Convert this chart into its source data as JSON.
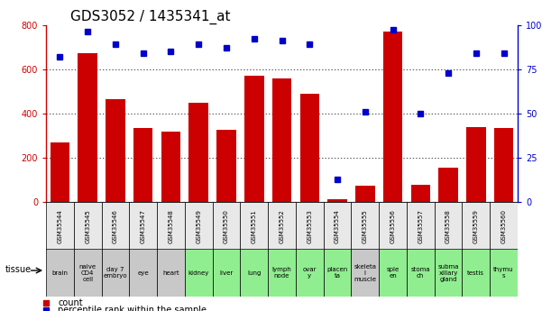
{
  "title": "GDS3052 / 1435341_at",
  "samples": [
    "GSM35544",
    "GSM35545",
    "GSM35546",
    "GSM35547",
    "GSM35548",
    "GSM35549",
    "GSM35550",
    "GSM35551",
    "GSM35552",
    "GSM35553",
    "GSM35554",
    "GSM35555",
    "GSM35556",
    "GSM35557",
    "GSM35558",
    "GSM35559",
    "GSM35560"
  ],
  "tissues": [
    "brain",
    "naive\nCD4\ncell",
    "day 7\nembryо",
    "eye",
    "heart",
    "kidney",
    "liver",
    "lung",
    "lymph\nnode",
    "ovar\ny",
    "placen\nta",
    "skeleta\nl\nmuscle",
    "sple\nen",
    "stoma\nch",
    "subma\nxillary\ngland",
    "testis",
    "thymu\ns"
  ],
  "tissue_colors": [
    "#c8c8c8",
    "#c8c8c8",
    "#c8c8c8",
    "#c8c8c8",
    "#c8c8c8",
    "#90ee90",
    "#90ee90",
    "#90ee90",
    "#90ee90",
    "#90ee90",
    "#90ee90",
    "#c8c8c8",
    "#90ee90",
    "#90ee90",
    "#90ee90",
    "#90ee90",
    "#90ee90"
  ],
  "counts": [
    270,
    672,
    465,
    335,
    318,
    450,
    328,
    572,
    560,
    490,
    15,
    75,
    770,
    80,
    155,
    340,
    335
  ],
  "percentiles": [
    82,
    96,
    89,
    84,
    85,
    89,
    87,
    92,
    91,
    89,
    13,
    51,
    97,
    50,
    73,
    84,
    84
  ],
  "ylim_left": [
    0,
    800
  ],
  "ylim_right": [
    0,
    100
  ],
  "yticks_left": [
    0,
    200,
    400,
    600,
    800
  ],
  "yticks_right": [
    0,
    25,
    50,
    75,
    100
  ],
  "bar_color": "#cc0000",
  "dot_color": "#0000cc",
  "background_color": "#ffffff",
  "title_fontsize": 11,
  "tick_fontsize": 7,
  "gsm_fontsize": 5,
  "tissue_fontsize": 5
}
